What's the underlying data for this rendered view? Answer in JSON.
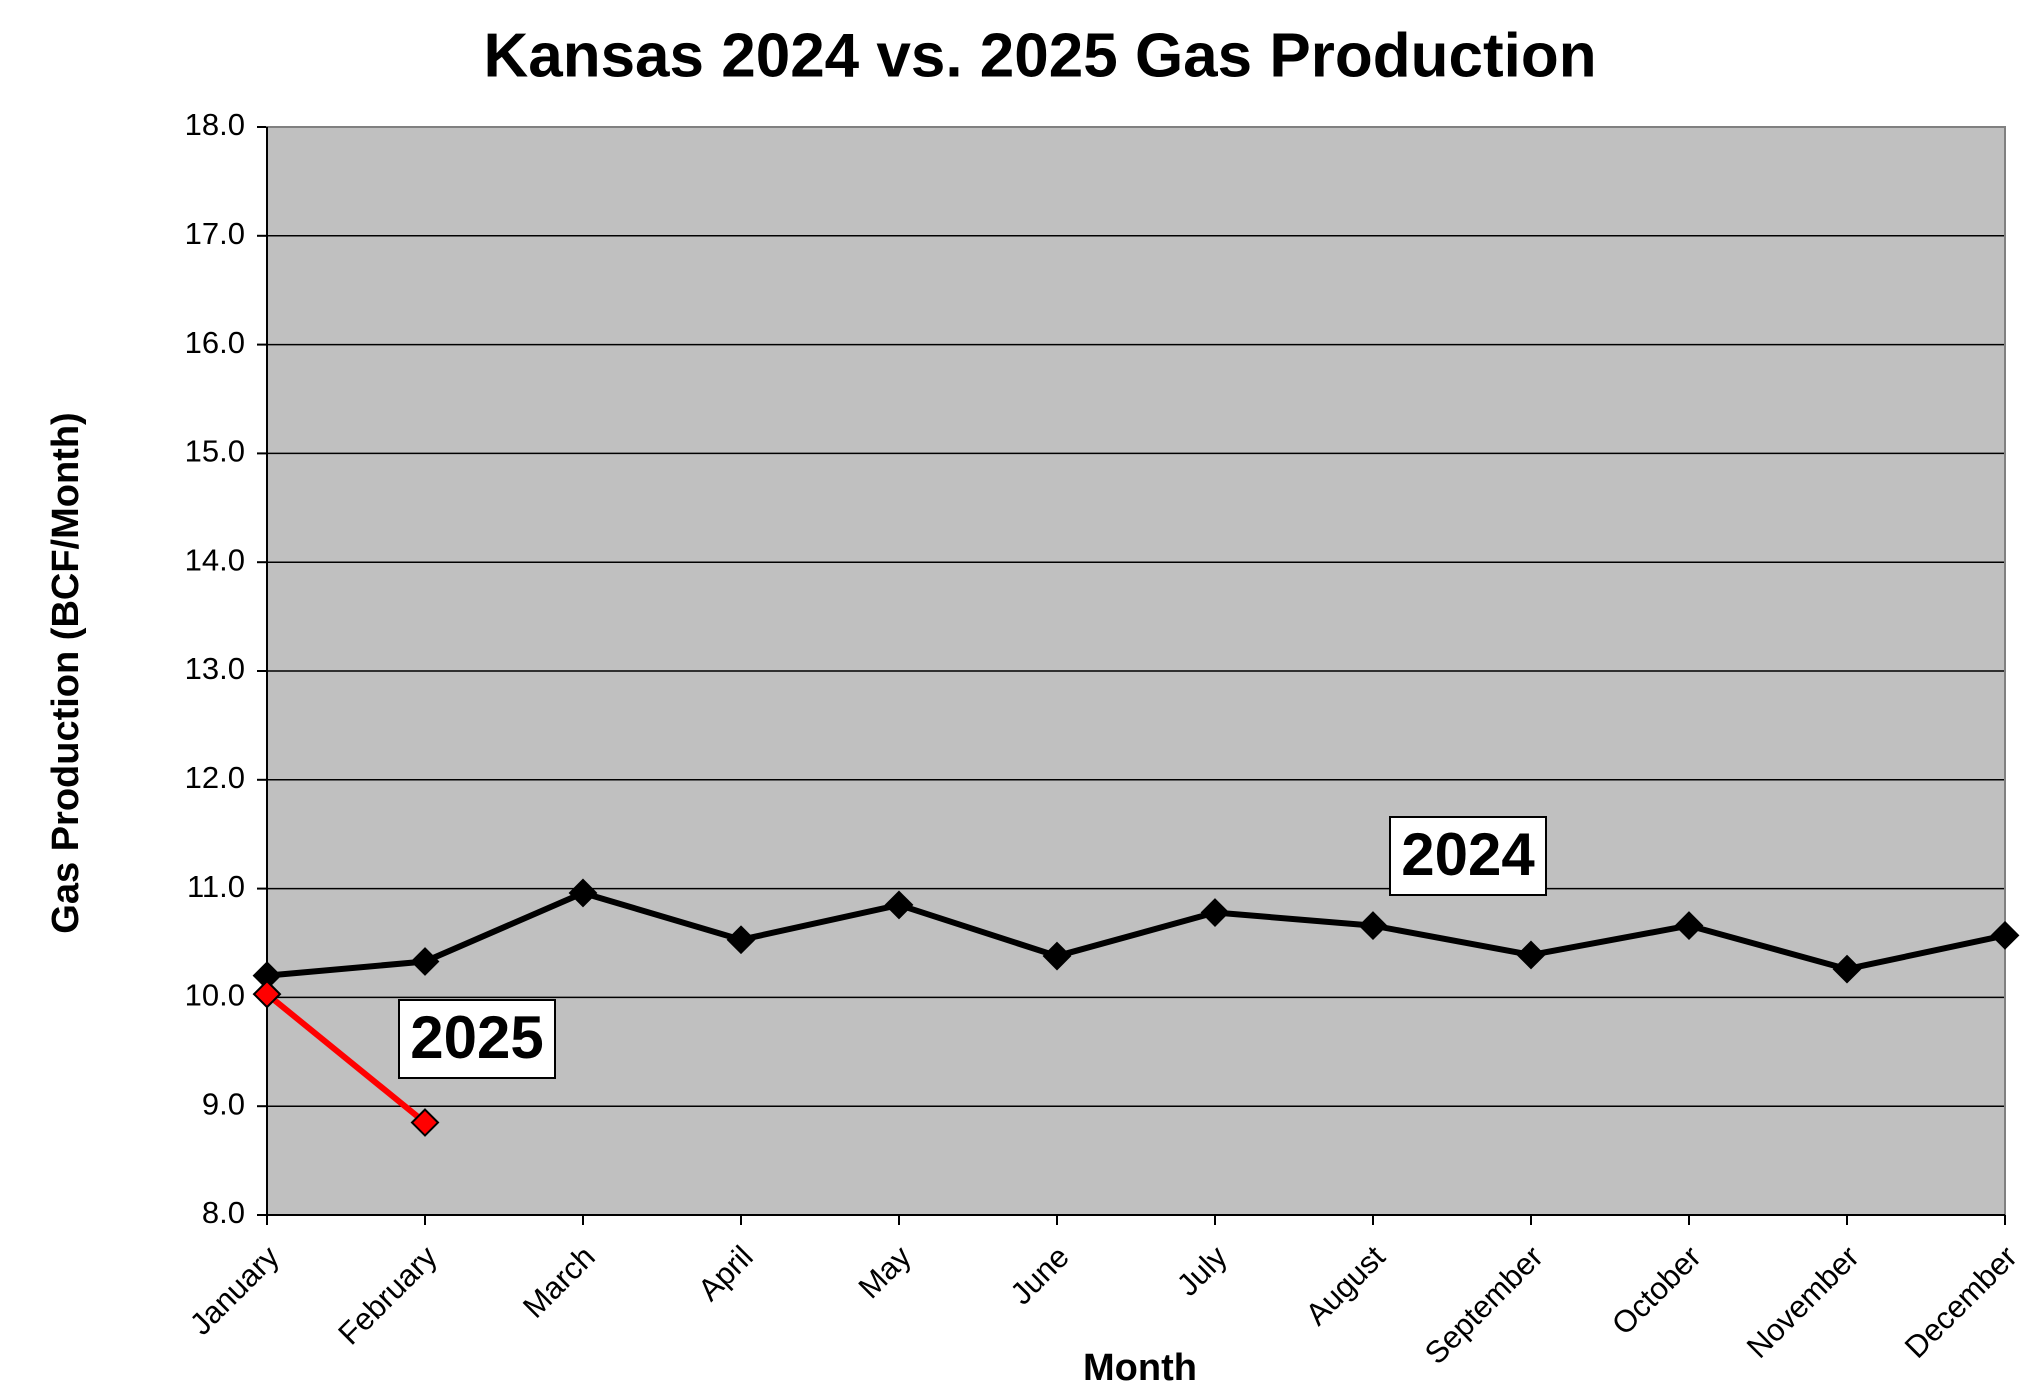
{
  "chart_data": {
    "type": "line",
    "title": "Kansas 2024 vs. 2025 Gas Production",
    "x_label": "Month",
    "y_label": "Gas Production (BCF/Month)",
    "categories": [
      "January",
      "February",
      "March",
      "April",
      "May",
      "June",
      "July",
      "August",
      "September",
      "October",
      "November",
      "December"
    ],
    "series": [
      {
        "name": "2024",
        "color": "#000000",
        "values": [
          10.2,
          10.33,
          10.96,
          10.53,
          10.85,
          10.38,
          10.78,
          10.66,
          10.39,
          10.66,
          10.26,
          10.57
        ]
      },
      {
        "name": "2025",
        "color": "#ff0000",
        "values": [
          10.03,
          8.85,
          null,
          null,
          null,
          null,
          null,
          null,
          null,
          null,
          null,
          null
        ]
      }
    ],
    "ylim": [
      8,
      18
    ],
    "yticks": [
      {
        "value": 8,
        "label": "8.0"
      },
      {
        "value": 9,
        "label": "9.0"
      },
      {
        "value": 10,
        "label": "10.0"
      },
      {
        "value": 11,
        "label": "11.0"
      },
      {
        "value": 12,
        "label": "12.0"
      },
      {
        "value": 13,
        "label": "13.0"
      },
      {
        "value": 14,
        "label": "14.0"
      },
      {
        "value": 15,
        "label": "15.0"
      },
      {
        "value": 16,
        "label": "16.0"
      },
      {
        "value": 17,
        "label": "17.0"
      },
      {
        "value": 18,
        "label": "18.0"
      }
    ],
    "grid": true,
    "plot_background": "#c0c0c0"
  }
}
